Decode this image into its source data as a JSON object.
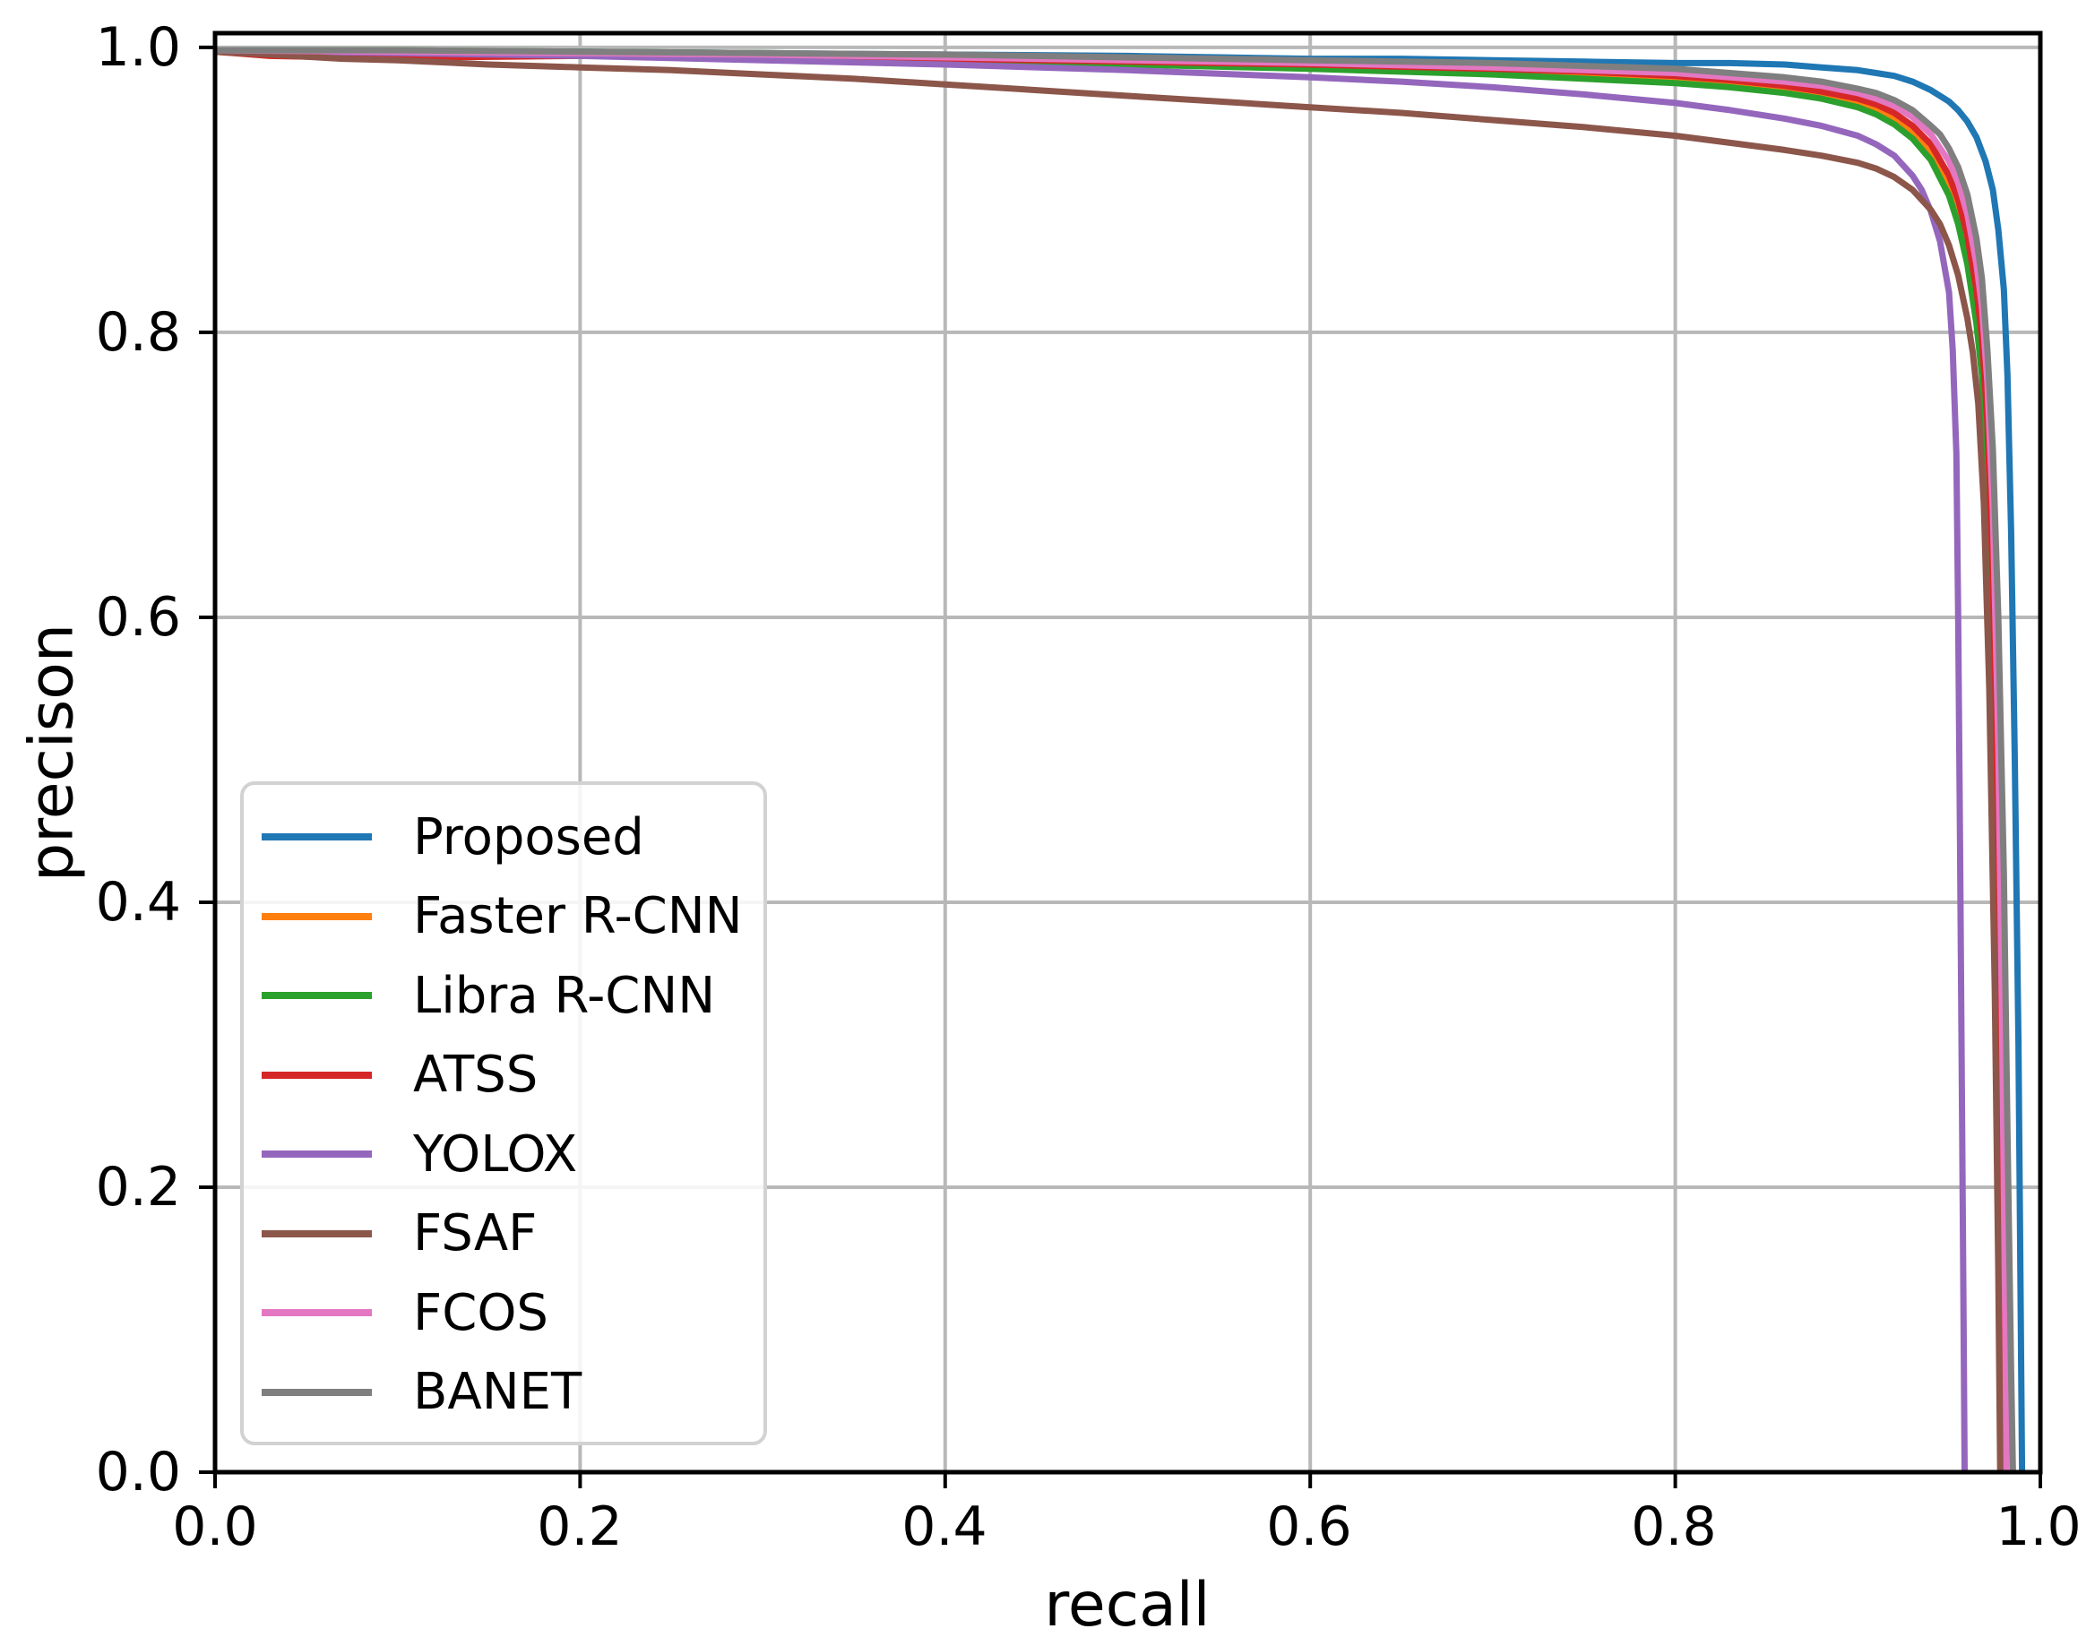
{
  "figure": {
    "background": "#ffffff",
    "axis_color": "#000000",
    "grid_color": "#b8b8b8"
  },
  "chart_data": {
    "type": "line",
    "title": "",
    "xlabel": "recall",
    "ylabel": "precison",
    "xlim": [
      0.0,
      1.0
    ],
    "ylim": [
      0.0,
      1.01
    ],
    "grid": true,
    "legend_position": "lower left",
    "xticks": [
      0.0,
      0.2,
      0.4,
      0.6,
      0.8,
      1.0
    ],
    "yticks": [
      0.0,
      0.2,
      0.4,
      0.6,
      0.8,
      1.0
    ],
    "xtick_labels": [
      "0.0",
      "0.2",
      "0.4",
      "0.6",
      "0.8",
      "1.0"
    ],
    "ytick_labels": [
      "0.0",
      "0.2",
      "0.4",
      "0.6",
      "0.8",
      "1.0"
    ],
    "series": [
      {
        "name": "Proposed",
        "color": "#1f77b4",
        "points": [
          [
            0,
            0.998
          ],
          [
            0.05,
            0.998
          ],
          [
            0.1,
            0.997
          ],
          [
            0.2,
            0.997
          ],
          [
            0.3,
            0.996
          ],
          [
            0.4,
            0.995
          ],
          [
            0.5,
            0.994
          ],
          [
            0.55,
            0.993
          ],
          [
            0.6,
            0.992
          ],
          [
            0.65,
            0.992
          ],
          [
            0.7,
            0.991
          ],
          [
            0.75,
            0.99
          ],
          [
            0.8,
            0.989
          ],
          [
            0.83,
            0.989
          ],
          [
            0.86,
            0.988
          ],
          [
            0.88,
            0.986
          ],
          [
            0.9,
            0.984
          ],
          [
            0.91,
            0.982
          ],
          [
            0.92,
            0.98
          ],
          [
            0.93,
            0.976
          ],
          [
            0.94,
            0.97
          ],
          [
            0.95,
            0.962
          ],
          [
            0.955,
            0.956
          ],
          [
            0.96,
            0.948
          ],
          [
            0.965,
            0.937
          ],
          [
            0.97,
            0.92
          ],
          [
            0.974,
            0.9
          ],
          [
            0.977,
            0.872
          ],
          [
            0.98,
            0.83
          ],
          [
            0.982,
            0.77
          ],
          [
            0.984,
            0.66
          ],
          [
            0.986,
            0.5
          ],
          [
            0.988,
            0.3
          ],
          [
            0.989,
            0.15
          ],
          [
            0.99,
            0
          ]
        ]
      },
      {
        "name": "Faster R-CNN",
        "color": "#ff7f0e",
        "points": [
          [
            0,
            0.998
          ],
          [
            0.1,
            0.996
          ],
          [
            0.2,
            0.995
          ],
          [
            0.3,
            0.993
          ],
          [
            0.4,
            0.991
          ],
          [
            0.5,
            0.989
          ],
          [
            0.6,
            0.986
          ],
          [
            0.7,
            0.982
          ],
          [
            0.75,
            0.98
          ],
          [
            0.8,
            0.977
          ],
          [
            0.83,
            0.974
          ],
          [
            0.86,
            0.97
          ],
          [
            0.88,
            0.966
          ],
          [
            0.9,
            0.961
          ],
          [
            0.91,
            0.957
          ],
          [
            0.92,
            0.95
          ],
          [
            0.93,
            0.941
          ],
          [
            0.94,
            0.927
          ],
          [
            0.95,
            0.904
          ],
          [
            0.955,
            0.886
          ],
          [
            0.96,
            0.86
          ],
          [
            0.965,
            0.82
          ],
          [
            0.968,
            0.786
          ],
          [
            0.971,
            0.722
          ],
          [
            0.974,
            0.6
          ],
          [
            0.976,
            0.46
          ],
          [
            0.978,
            0.25
          ],
          [
            0.979,
            0.05
          ],
          [
            0.9795,
            0
          ]
        ]
      },
      {
        "name": "Libra R-CNN",
        "color": "#2ca02c",
        "points": [
          [
            0,
            0.998
          ],
          [
            0.1,
            0.998
          ],
          [
            0.2,
            0.997
          ],
          [
            0.3,
            0.996
          ],
          [
            0.35,
            0.995
          ],
          [
            0.4,
            0.992
          ],
          [
            0.45,
            0.99
          ],
          [
            0.5,
            0.988
          ],
          [
            0.6,
            0.985
          ],
          [
            0.7,
            0.981
          ],
          [
            0.75,
            0.978
          ],
          [
            0.8,
            0.975
          ],
          [
            0.83,
            0.972
          ],
          [
            0.86,
            0.968
          ],
          [
            0.88,
            0.964
          ],
          [
            0.9,
            0.958
          ],
          [
            0.91,
            0.953
          ],
          [
            0.92,
            0.946
          ],
          [
            0.93,
            0.936
          ],
          [
            0.94,
            0.921
          ],
          [
            0.95,
            0.896
          ],
          [
            0.955,
            0.876
          ],
          [
            0.96,
            0.848
          ],
          [
            0.965,
            0.806
          ],
          [
            0.968,
            0.77
          ],
          [
            0.971,
            0.705
          ],
          [
            0.974,
            0.585
          ],
          [
            0.976,
            0.44
          ],
          [
            0.978,
            0.21
          ],
          [
            0.979,
            0
          ]
        ]
      },
      {
        "name": "ATSS",
        "color": "#d62728",
        "points": [
          [
            0,
            0.997
          ],
          [
            0.03,
            0.994
          ],
          [
            0.07,
            0.993
          ],
          [
            0.12,
            0.993
          ],
          [
            0.2,
            0.994
          ],
          [
            0.3,
            0.993
          ],
          [
            0.4,
            0.992
          ],
          [
            0.5,
            0.99
          ],
          [
            0.6,
            0.988
          ],
          [
            0.7,
            0.985
          ],
          [
            0.75,
            0.983
          ],
          [
            0.8,
            0.98
          ],
          [
            0.83,
            0.977
          ],
          [
            0.86,
            0.973
          ],
          [
            0.88,
            0.969
          ],
          [
            0.9,
            0.964
          ],
          [
            0.91,
            0.96
          ],
          [
            0.92,
            0.954
          ],
          [
            0.93,
            0.945
          ],
          [
            0.94,
            0.932
          ],
          [
            0.95,
            0.91
          ],
          [
            0.955,
            0.893
          ],
          [
            0.96,
            0.868
          ],
          [
            0.965,
            0.83
          ],
          [
            0.968,
            0.797
          ],
          [
            0.971,
            0.737
          ],
          [
            0.974,
            0.625
          ],
          [
            0.977,
            0.44
          ],
          [
            0.979,
            0.2
          ],
          [
            0.98,
            0.04
          ],
          [
            0.9805,
            0
          ]
        ]
      },
      {
        "name": "YOLOX",
        "color": "#9467bd",
        "points": [
          [
            0,
            0.997
          ],
          [
            0.05,
            0.997
          ],
          [
            0.1,
            0.996
          ],
          [
            0.2,
            0.994
          ],
          [
            0.3,
            0.991
          ],
          [
            0.4,
            0.988
          ],
          [
            0.5,
            0.984
          ],
          [
            0.6,
            0.979
          ],
          [
            0.65,
            0.976
          ],
          [
            0.7,
            0.972
          ],
          [
            0.75,
            0.967
          ],
          [
            0.8,
            0.961
          ],
          [
            0.83,
            0.956
          ],
          [
            0.86,
            0.95
          ],
          [
            0.88,
            0.945
          ],
          [
            0.9,
            0.938
          ],
          [
            0.91,
            0.932
          ],
          [
            0.92,
            0.924
          ],
          [
            0.93,
            0.91
          ],
          [
            0.935,
            0.9
          ],
          [
            0.94,
            0.885
          ],
          [
            0.945,
            0.864
          ],
          [
            0.95,
            0.828
          ],
          [
            0.952,
            0.788
          ],
          [
            0.954,
            0.715
          ],
          [
            0.955,
            0.6
          ],
          [
            0.956,
            0.44
          ],
          [
            0.957,
            0.27
          ],
          [
            0.958,
            0.1
          ],
          [
            0.9585,
            0
          ]
        ]
      },
      {
        "name": "FSAF",
        "color": "#8c564b",
        "points": [
          [
            0,
            0.997
          ],
          [
            0.03,
            0.995
          ],
          [
            0.07,
            0.992
          ],
          [
            0.1,
            0.991
          ],
          [
            0.15,
            0.988
          ],
          [
            0.2,
            0.986
          ],
          [
            0.25,
            0.984
          ],
          [
            0.3,
            0.981
          ],
          [
            0.35,
            0.978
          ],
          [
            0.4,
            0.974
          ],
          [
            0.45,
            0.97
          ],
          [
            0.5,
            0.966
          ],
          [
            0.55,
            0.962
          ],
          [
            0.6,
            0.958
          ],
          [
            0.65,
            0.954
          ],
          [
            0.7,
            0.949
          ],
          [
            0.75,
            0.944
          ],
          [
            0.8,
            0.938
          ],
          [
            0.83,
            0.933
          ],
          [
            0.86,
            0.928
          ],
          [
            0.88,
            0.924
          ],
          [
            0.9,
            0.919
          ],
          [
            0.91,
            0.915
          ],
          [
            0.92,
            0.909
          ],
          [
            0.93,
            0.9
          ],
          [
            0.94,
            0.886
          ],
          [
            0.945,
            0.876
          ],
          [
            0.95,
            0.861
          ],
          [
            0.955,
            0.84
          ],
          [
            0.96,
            0.81
          ],
          [
            0.963,
            0.786
          ],
          [
            0.966,
            0.75
          ],
          [
            0.969,
            0.68
          ],
          [
            0.972,
            0.55
          ],
          [
            0.975,
            0.34
          ],
          [
            0.977,
            0.14
          ],
          [
            0.978,
            0
          ]
        ]
      },
      {
        "name": "FCOS",
        "color": "#e377c2",
        "points": [
          [
            0,
            0.998
          ],
          [
            0.1,
            0.997
          ],
          [
            0.2,
            0.996
          ],
          [
            0.3,
            0.995
          ],
          [
            0.4,
            0.993
          ],
          [
            0.5,
            0.991
          ],
          [
            0.6,
            0.989
          ],
          [
            0.7,
            0.986
          ],
          [
            0.75,
            0.984
          ],
          [
            0.8,
            0.982
          ],
          [
            0.83,
            0.979
          ],
          [
            0.86,
            0.976
          ],
          [
            0.88,
            0.973
          ],
          [
            0.9,
            0.968
          ],
          [
            0.91,
            0.964
          ],
          [
            0.92,
            0.959
          ],
          [
            0.93,
            0.951
          ],
          [
            0.94,
            0.939
          ],
          [
            0.95,
            0.92
          ],
          [
            0.955,
            0.905
          ],
          [
            0.96,
            0.883
          ],
          [
            0.965,
            0.848
          ],
          [
            0.968,
            0.818
          ],
          [
            0.971,
            0.765
          ],
          [
            0.974,
            0.675
          ],
          [
            0.977,
            0.51
          ],
          [
            0.979,
            0.32
          ],
          [
            0.981,
            0.08
          ],
          [
            0.9815,
            0
          ]
        ]
      },
      {
        "name": "BANET",
        "color": "#7f7f7f",
        "points": [
          [
            0,
            0.998
          ],
          [
            0.1,
            0.998
          ],
          [
            0.2,
            0.997
          ],
          [
            0.3,
            0.996
          ],
          [
            0.4,
            0.995
          ],
          [
            0.5,
            0.993
          ],
          [
            0.6,
            0.991
          ],
          [
            0.7,
            0.989
          ],
          [
            0.75,
            0.987
          ],
          [
            0.8,
            0.985
          ],
          [
            0.83,
            0.982
          ],
          [
            0.86,
            0.979
          ],
          [
            0.88,
            0.976
          ],
          [
            0.9,
            0.971
          ],
          [
            0.91,
            0.968
          ],
          [
            0.92,
            0.963
          ],
          [
            0.93,
            0.956
          ],
          [
            0.94,
            0.945
          ],
          [
            0.945,
            0.939
          ],
          [
            0.95,
            0.929
          ],
          [
            0.955,
            0.916
          ],
          [
            0.96,
            0.897
          ],
          [
            0.965,
            0.866
          ],
          [
            0.968,
            0.838
          ],
          [
            0.971,
            0.788
          ],
          [
            0.974,
            0.718
          ],
          [
            0.977,
            0.6
          ],
          [
            0.98,
            0.42
          ],
          [
            0.982,
            0.24
          ],
          [
            0.984,
            0.07
          ],
          [
            0.985,
            0
          ]
        ]
      }
    ]
  }
}
